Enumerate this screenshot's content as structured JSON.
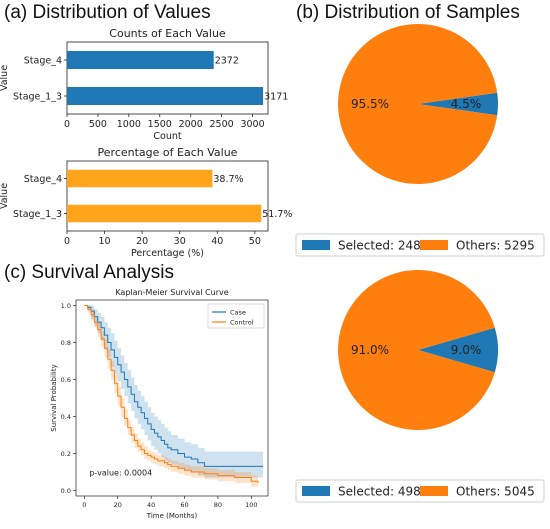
{
  "panels": {
    "a_title": "(a) Distribution of Values",
    "b_title": "(b) Distribution of Samples",
    "c_title": "(c) Survival Analysis"
  },
  "chart_data": [
    {
      "id": "counts",
      "type": "bar",
      "orientation": "horizontal",
      "title": "Counts of Each Value",
      "xlabel": "Count",
      "ylabel": "Value",
      "categories": [
        "Stage_1_3",
        "Stage_4"
      ],
      "values": [
        3171,
        2372
      ],
      "value_labels": [
        "3171",
        "2372"
      ],
      "xlim": [
        0,
        3250
      ],
      "xticks": [
        0,
        500,
        1000,
        1500,
        2000,
        2500,
        3000
      ],
      "color": "#1f77b4"
    },
    {
      "id": "percent",
      "type": "bar",
      "orientation": "horizontal",
      "title": "Percentage of Each Value",
      "xlabel": "Percentage (%)",
      "ylabel": "Value",
      "categories": [
        "Stage_1_3",
        "Stage_4"
      ],
      "values": [
        51.7,
        38.7
      ],
      "value_labels": [
        "51.7%",
        "38.7%"
      ],
      "xlim": [
        0,
        53.5
      ],
      "xticks": [
        0,
        10,
        20,
        30,
        40,
        50
      ],
      "color": "#ffa41b"
    },
    {
      "id": "pie1",
      "type": "pie",
      "slices": [
        {
          "label": "Selected",
          "value": 248,
          "pct": "4.5%",
          "color": "#1f77b4"
        },
        {
          "label": "Others",
          "value": 5295,
          "pct": "95.5%",
          "color": "#ff7f0e"
        }
      ],
      "legend": [
        "Selected: 248",
        "Others: 5295"
      ],
      "legend_position": "bottom"
    },
    {
      "id": "pie2",
      "type": "pie",
      "slices": [
        {
          "label": "Selected",
          "value": 498,
          "pct": "9.0%",
          "color": "#1f77b4"
        },
        {
          "label": "Others",
          "value": 5045,
          "pct": "91.0%",
          "color": "#ff7f0e"
        }
      ],
      "legend": [
        "Selected: 498",
        "Others: 5045"
      ],
      "legend_position": "bottom"
    },
    {
      "id": "km",
      "type": "line",
      "title": "Kaplan-Meier Survival Curve",
      "xlabel": "Time (Months)",
      "ylabel": "Survival Probability",
      "xlim": [
        -5,
        110
      ],
      "ylim": [
        -0.03,
        1.03
      ],
      "xticks": [
        0,
        20,
        40,
        60,
        80,
        100
      ],
      "yticks": [
        0.0,
        0.2,
        0.4,
        0.6,
        0.8,
        1.0
      ],
      "annotation": "p-value: 0.0004",
      "legend_position": "top-right",
      "series": [
        {
          "name": "Case",
          "color": "#1f77b4",
          "x": [
            0,
            2,
            4,
            6,
            8,
            10,
            12,
            14,
            16,
            18,
            20,
            22,
            24,
            26,
            28,
            30,
            32,
            34,
            36,
            38,
            40,
            42,
            44,
            46,
            48,
            50,
            52,
            56,
            60,
            64,
            68,
            72,
            76,
            80,
            90,
            100,
            107
          ],
          "y": [
            1.0,
            0.99,
            0.97,
            0.94,
            0.91,
            0.88,
            0.84,
            0.8,
            0.76,
            0.72,
            0.68,
            0.64,
            0.6,
            0.56,
            0.52,
            0.48,
            0.45,
            0.42,
            0.39,
            0.36,
            0.33,
            0.31,
            0.29,
            0.27,
            0.25,
            0.23,
            0.22,
            0.2,
            0.18,
            0.17,
            0.15,
            0.13,
            0.13,
            0.13,
            0.13,
            0.13,
            0.13
          ],
          "lower": [
            1.0,
            0.97,
            0.93,
            0.89,
            0.85,
            0.81,
            0.76,
            0.72,
            0.67,
            0.63,
            0.59,
            0.55,
            0.51,
            0.47,
            0.43,
            0.39,
            0.36,
            0.33,
            0.3,
            0.27,
            0.24,
            0.22,
            0.2,
            0.18,
            0.16,
            0.15,
            0.14,
            0.12,
            0.11,
            0.1,
            0.08,
            0.07,
            0.07,
            0.07,
            0.07,
            0.07,
            0.07
          ],
          "upper": [
            1.0,
            1.0,
            1.0,
            0.98,
            0.96,
            0.94,
            0.91,
            0.88,
            0.85,
            0.81,
            0.77,
            0.73,
            0.69,
            0.65,
            0.61,
            0.57,
            0.54,
            0.51,
            0.48,
            0.45,
            0.42,
            0.4,
            0.38,
            0.36,
            0.34,
            0.32,
            0.3,
            0.28,
            0.26,
            0.25,
            0.23,
            0.21,
            0.21,
            0.21,
            0.21,
            0.21,
            0.21
          ]
        },
        {
          "name": "Control",
          "color": "#ff7f0e",
          "x": [
            0,
            2,
            4,
            6,
            8,
            10,
            12,
            14,
            16,
            18,
            20,
            22,
            24,
            26,
            28,
            30,
            32,
            34,
            36,
            38,
            40,
            42,
            44,
            46,
            48,
            50,
            52,
            56,
            60,
            64,
            68,
            72,
            76,
            80,
            90,
            100,
            104
          ],
          "y": [
            1.0,
            0.98,
            0.95,
            0.91,
            0.87,
            0.82,
            0.77,
            0.71,
            0.65,
            0.58,
            0.51,
            0.45,
            0.39,
            0.34,
            0.3,
            0.27,
            0.24,
            0.22,
            0.2,
            0.19,
            0.18,
            0.17,
            0.16,
            0.16,
            0.15,
            0.14,
            0.13,
            0.12,
            0.11,
            0.1,
            0.1,
            0.09,
            0.09,
            0.08,
            0.07,
            0.05,
            0.04
          ],
          "lower": [
            1.0,
            0.96,
            0.92,
            0.88,
            0.83,
            0.78,
            0.72,
            0.66,
            0.6,
            0.53,
            0.46,
            0.4,
            0.35,
            0.3,
            0.26,
            0.23,
            0.21,
            0.19,
            0.17,
            0.16,
            0.15,
            0.14,
            0.13,
            0.13,
            0.12,
            0.11,
            0.1,
            0.09,
            0.08,
            0.07,
            0.07,
            0.06,
            0.06,
            0.05,
            0.04,
            0.02,
            0.02
          ],
          "upper": [
            1.0,
            1.0,
            0.98,
            0.94,
            0.91,
            0.86,
            0.82,
            0.76,
            0.7,
            0.63,
            0.56,
            0.5,
            0.44,
            0.38,
            0.34,
            0.31,
            0.28,
            0.26,
            0.24,
            0.22,
            0.21,
            0.2,
            0.19,
            0.19,
            0.18,
            0.17,
            0.16,
            0.15,
            0.14,
            0.13,
            0.13,
            0.12,
            0.12,
            0.11,
            0.1,
            0.08,
            0.07
          ]
        }
      ]
    }
  ]
}
